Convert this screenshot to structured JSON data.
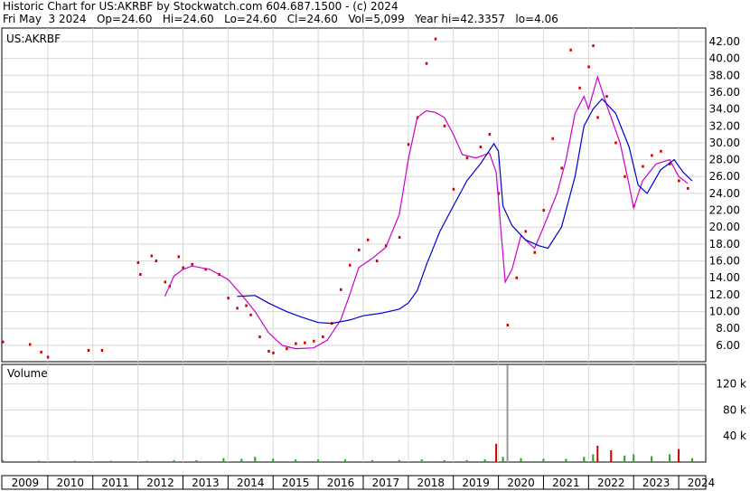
{
  "header": {
    "line1": "Historic Chart for US:AKRBF by Stockwatch.com 604.687.1500 - (c) 2024",
    "line2": "Fri May  3 2024   Op=24.60   Hi=24.60   Lo=24.60   Cl=24.60   Vol=5,099   Year hi=42.3357   lo=4.06"
  },
  "chart_data": [
    {
      "type": "scatter",
      "title": "US:AKRBF",
      "ylim": [
        4.06,
        43
      ],
      "y_ticks": [
        6,
        8,
        10,
        12,
        14,
        16,
        18,
        20,
        22,
        24,
        26,
        28,
        30,
        32,
        34,
        36,
        38,
        40,
        42
      ],
      "y_tick_labels": [
        "6.00",
        "8.00",
        "10.00",
        "12.00",
        "14.00",
        "16.00",
        "18.00",
        "20.00",
        "22.00",
        "24.00",
        "26.00",
        "28.00",
        "30.00",
        "32.00",
        "34.00",
        "36.00",
        "38.00",
        "40.00",
        "42.00"
      ],
      "x_ticks": [
        "2009",
        "2010",
        "2011",
        "2012",
        "2013",
        "2014",
        "2015",
        "2016",
        "2017",
        "2018",
        "2019",
        "2020",
        "2021",
        "2022",
        "2023",
        "2024"
      ],
      "grid": true,
      "series": [
        {
          "kind": "price",
          "color": "#cc0000",
          "points": [
            [
              2009.0,
              6.4
            ],
            [
              2009.6,
              6.1
            ],
            [
              2009.85,
              5.2
            ],
            [
              2010.0,
              4.6
            ],
            [
              2010.9,
              5.4
            ],
            [
              2011.2,
              5.4
            ],
            [
              2012.0,
              15.8
            ],
            [
              2012.05,
              14.4
            ],
            [
              2012.3,
              16.6
            ],
            [
              2012.4,
              16.0
            ],
            [
              2012.6,
              13.5
            ],
            [
              2012.7,
              13.0
            ],
            [
              2012.9,
              16.5
            ],
            [
              2013.0,
              15.2
            ],
            [
              2013.2,
              15.6
            ],
            [
              2013.5,
              15.0
            ],
            [
              2013.8,
              14.4
            ],
            [
              2014.0,
              11.6
            ],
            [
              2014.2,
              10.4
            ],
            [
              2014.4,
              10.7
            ],
            [
              2014.5,
              9.6
            ],
            [
              2014.7,
              7.0
            ],
            [
              2014.9,
              5.3
            ],
            [
              2015.0,
              5.1
            ],
            [
              2015.3,
              5.6
            ],
            [
              2015.5,
              6.2
            ],
            [
              2015.7,
              6.3
            ],
            [
              2015.9,
              6.5
            ],
            [
              2016.1,
              7.0
            ],
            [
              2016.3,
              8.6
            ],
            [
              2016.5,
              12.6
            ],
            [
              2016.7,
              15.5
            ],
            [
              2016.9,
              17.3
            ],
            [
              2017.1,
              18.5
            ],
            [
              2017.3,
              16.0
            ],
            [
              2017.5,
              17.8
            ],
            [
              2017.8,
              18.8
            ],
            [
              2018.0,
              29.8
            ],
            [
              2018.2,
              33.0
            ],
            [
              2018.4,
              39.4
            ],
            [
              2018.6,
              42.3
            ],
            [
              2018.8,
              32.0
            ],
            [
              2019.0,
              24.5
            ],
            [
              2019.3,
              28.2
            ],
            [
              2019.6,
              29.5
            ],
            [
              2019.8,
              31.0
            ],
            [
              2020.0,
              24.0
            ],
            [
              2020.2,
              8.4
            ],
            [
              2020.4,
              14.0
            ],
            [
              2020.6,
              19.5
            ],
            [
              2020.8,
              17.0
            ],
            [
              2021.0,
              22.0
            ],
            [
              2021.2,
              30.5
            ],
            [
              2021.4,
              27.0
            ],
            [
              2021.6,
              41.0
            ],
            [
              2021.8,
              36.5
            ],
            [
              2022.0,
              39.0
            ],
            [
              2022.1,
              41.5
            ],
            [
              2022.2,
              33.0
            ],
            [
              2022.4,
              35.5
            ],
            [
              2022.6,
              30.0
            ],
            [
              2022.8,
              26.0
            ],
            [
              2023.0,
              22.5
            ],
            [
              2023.2,
              27.2
            ],
            [
              2023.4,
              28.5
            ],
            [
              2023.6,
              29.0
            ],
            [
              2023.8,
              27.5
            ],
            [
              2024.0,
              25.5
            ],
            [
              2024.2,
              24.6
            ]
          ]
        },
        {
          "kind": "moving-average-short",
          "color": "#cc00cc",
          "points": [
            [
              2012.6,
              11.8
            ],
            [
              2012.8,
              14.2
            ],
            [
              2013.0,
              15.0
            ],
            [
              2013.2,
              15.4
            ],
            [
              2013.6,
              15.0
            ],
            [
              2014.0,
              13.8
            ],
            [
              2014.3,
              12.0
            ],
            [
              2014.6,
              10.0
            ],
            [
              2014.9,
              7.5
            ],
            [
              2015.2,
              6.0
            ],
            [
              2015.5,
              5.6
            ],
            [
              2015.9,
              5.7
            ],
            [
              2016.2,
              6.6
            ],
            [
              2016.5,
              9.0
            ],
            [
              2016.7,
              12.0
            ],
            [
              2016.9,
              15.2
            ],
            [
              2017.2,
              16.3
            ],
            [
              2017.5,
              17.6
            ],
            [
              2017.8,
              21.5
            ],
            [
              2018.0,
              28.0
            ],
            [
              2018.2,
              33.0
            ],
            [
              2018.4,
              33.8
            ],
            [
              2018.6,
              33.6
            ],
            [
              2018.8,
              33.0
            ],
            [
              2019.0,
              31.0
            ],
            [
              2019.2,
              28.6
            ],
            [
              2019.5,
              28.2
            ],
            [
              2019.8,
              28.8
            ],
            [
              2019.95,
              26.5
            ],
            [
              2020.15,
              13.5
            ],
            [
              2020.3,
              15.0
            ],
            [
              2020.5,
              19.0
            ],
            [
              2020.8,
              17.5
            ],
            [
              2021.0,
              20.0
            ],
            [
              2021.3,
              24.0
            ],
            [
              2021.5,
              28.0
            ],
            [
              2021.7,
              33.5
            ],
            [
              2021.9,
              35.5
            ],
            [
              2022.0,
              34.0
            ],
            [
              2022.2,
              37.8
            ],
            [
              2022.4,
              34.5
            ],
            [
              2022.7,
              30.0
            ],
            [
              2022.9,
              25.0
            ],
            [
              2023.0,
              22.3
            ],
            [
              2023.2,
              25.5
            ],
            [
              2023.5,
              27.5
            ],
            [
              2023.8,
              28.0
            ],
            [
              2024.0,
              26.0
            ],
            [
              2024.2,
              25.2
            ]
          ]
        },
        {
          "kind": "moving-average-long",
          "color": "#0000cc",
          "points": [
            [
              2014.2,
              11.8
            ],
            [
              2014.6,
              11.9
            ],
            [
              2014.9,
              11.0
            ],
            [
              2015.3,
              10.0
            ],
            [
              2015.6,
              9.4
            ],
            [
              2016.0,
              8.7
            ],
            [
              2016.3,
              8.6
            ],
            [
              2016.7,
              9.0
            ],
            [
              2017.0,
              9.5
            ],
            [
              2017.4,
              9.8
            ],
            [
              2017.8,
              10.3
            ],
            [
              2018.0,
              11.0
            ],
            [
              2018.2,
              12.5
            ],
            [
              2018.4,
              15.5
            ],
            [
              2018.7,
              19.5
            ],
            [
              2019.0,
              22.5
            ],
            [
              2019.3,
              25.5
            ],
            [
              2019.6,
              27.5
            ],
            [
              2019.9,
              29.9
            ],
            [
              2020.0,
              29.0
            ],
            [
              2020.1,
              22.5
            ],
            [
              2020.3,
              20.2
            ],
            [
              2020.6,
              18.5
            ],
            [
              2020.9,
              17.8
            ],
            [
              2021.1,
              17.5
            ],
            [
              2021.4,
              20.0
            ],
            [
              2021.7,
              26.0
            ],
            [
              2021.9,
              32.0
            ],
            [
              2022.1,
              34.0
            ],
            [
              2022.3,
              35.2
            ],
            [
              2022.6,
              33.5
            ],
            [
              2022.9,
              29.5
            ],
            [
              2023.1,
              25.0
            ],
            [
              2023.3,
              24.0
            ],
            [
              2023.6,
              26.8
            ],
            [
              2023.9,
              28.0
            ],
            [
              2024.1,
              26.5
            ],
            [
              2024.3,
              25.5
            ]
          ]
        }
      ]
    },
    {
      "type": "bar",
      "title": "Volume",
      "ylim": [
        0,
        150
      ],
      "y_ticks": [
        40,
        80,
        120
      ],
      "y_tick_labels": [
        "40 k",
        "80 k",
        "120 k"
      ],
      "x_ticks": [
        "2009",
        "2010",
        "2011",
        "2012",
        "2013",
        "2014",
        "2015",
        "2016",
        "2017",
        "2018",
        "2019",
        "2020",
        "2021",
        "2022",
        "2023",
        "2024"
      ],
      "series": [
        {
          "name": "Volume",
          "points": [
            [
              2009.0,
              3
            ],
            [
              2009.8,
              2
            ],
            [
              2010.6,
              2
            ],
            [
              2011.4,
              2
            ],
            [
              2012.2,
              2
            ],
            [
              2012.8,
              3
            ],
            [
              2013.3,
              3
            ],
            [
              2013.9,
              6
            ],
            [
              2014.3,
              5
            ],
            [
              2014.6,
              8
            ],
            [
              2015.0,
              5
            ],
            [
              2015.5,
              4
            ],
            [
              2016.0,
              4
            ],
            [
              2016.6,
              4
            ],
            [
              2017.2,
              3
            ],
            [
              2017.8,
              3
            ],
            [
              2018.3,
              4
            ],
            [
              2018.8,
              3
            ],
            [
              2019.3,
              3
            ],
            [
              2019.7,
              4
            ],
            [
              2019.95,
              28
            ],
            [
              2020.1,
              8
            ],
            [
              2020.2,
              149
            ],
            [
              2020.5,
              6
            ],
            [
              2021.0,
              5
            ],
            [
              2021.5,
              5
            ],
            [
              2021.9,
              8
            ],
            [
              2022.1,
              12
            ],
            [
              2022.2,
              25
            ],
            [
              2022.5,
              18
            ],
            [
              2022.8,
              10
            ],
            [
              2023.0,
              12
            ],
            [
              2023.4,
              9
            ],
            [
              2023.8,
              12
            ],
            [
              2024.0,
              20
            ],
            [
              2024.3,
              6
            ]
          ]
        }
      ]
    }
  ]
}
